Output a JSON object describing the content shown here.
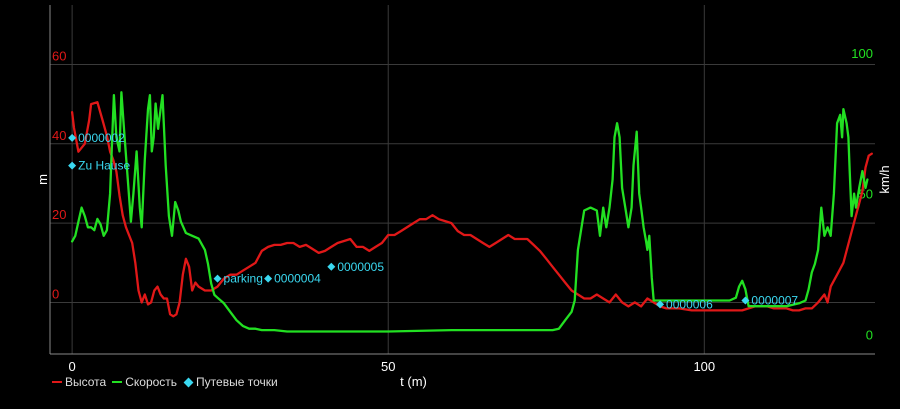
{
  "colors": {
    "altitude": "#e01818",
    "speed": "#22e022",
    "waypoint": "#3ad8f0",
    "grid": "#3a3a3a",
    "axis": "#888888",
    "text": "#ffffff",
    "background": "#000000"
  },
  "legend": {
    "altitude_label": "Высота",
    "speed_label": "Скорость",
    "waypoints_label": "Путевые точки"
  },
  "chart_data": {
    "type": "line",
    "xlabel": "t (m)",
    "ylabel_left": "m",
    "ylabel_right": "km/h",
    "xlim": [
      -3.5,
      127
    ],
    "ylim_left": [
      -13,
      75
    ],
    "ylim_right": [
      -7,
      117
    ],
    "x_ticks": [
      0,
      50,
      100
    ],
    "y_ticks_left": [
      0,
      20,
      40,
      60
    ],
    "y_ticks_right": [
      0,
      50,
      100
    ],
    "grid": true,
    "legend_position": "bottom-left",
    "series": [
      {
        "name": "Высота",
        "axis": "left",
        "points": [
          [
            0,
            48
          ],
          [
            0.3,
            44
          ],
          [
            1,
            38
          ],
          [
            2,
            40
          ],
          [
            2.7,
            46
          ],
          [
            3,
            50
          ],
          [
            4,
            50.5
          ],
          [
            4.8,
            46
          ],
          [
            5.5,
            42
          ],
          [
            6,
            38
          ],
          [
            6.5,
            36
          ],
          [
            7,
            33
          ],
          [
            7.5,
            27
          ],
          [
            8,
            22
          ],
          [
            8.5,
            19
          ],
          [
            9,
            17
          ],
          [
            9.5,
            15
          ],
          [
            10,
            10
          ],
          [
            10.5,
            3
          ],
          [
            11,
            0
          ],
          [
            11.5,
            2
          ],
          [
            12,
            -0.5
          ],
          [
            12.5,
            0
          ],
          [
            13,
            3
          ],
          [
            13.5,
            4
          ],
          [
            14,
            2
          ],
          [
            14.5,
            1
          ],
          [
            15,
            1
          ],
          [
            15.5,
            -3
          ],
          [
            16,
            -3.5
          ],
          [
            16.5,
            -3
          ],
          [
            17,
            0
          ],
          [
            17.5,
            7
          ],
          [
            18,
            11
          ],
          [
            18.5,
            9
          ],
          [
            19,
            3
          ],
          [
            19.5,
            5
          ],
          [
            20,
            4
          ],
          [
            21,
            3
          ],
          [
            22,
            3
          ],
          [
            23,
            4
          ],
          [
            24,
            6
          ],
          [
            25,
            7
          ],
          [
            26,
            7
          ],
          [
            27,
            8
          ],
          [
            28,
            9
          ],
          [
            29,
            10
          ],
          [
            30,
            13
          ],
          [
            31,
            14
          ],
          [
            32,
            14.5
          ],
          [
            33,
            14.5
          ],
          [
            34,
            15
          ],
          [
            35,
            15
          ],
          [
            36,
            14
          ],
          [
            37,
            14.5
          ],
          [
            38,
            13.5
          ],
          [
            39,
            12.5
          ],
          [
            40,
            13
          ],
          [
            41,
            14
          ],
          [
            42,
            15
          ],
          [
            43,
            15.5
          ],
          [
            44,
            16
          ],
          [
            45,
            14
          ],
          [
            46,
            14
          ],
          [
            47,
            13
          ],
          [
            48,
            14
          ],
          [
            49,
            15
          ],
          [
            50,
            17
          ],
          [
            51,
            17
          ],
          [
            52,
            18
          ],
          [
            53,
            19
          ],
          [
            54,
            20
          ],
          [
            55,
            21
          ],
          [
            56,
            21
          ],
          [
            57,
            22
          ],
          [
            58,
            21
          ],
          [
            59,
            20.5
          ],
          [
            60,
            20
          ],
          [
            61,
            18
          ],
          [
            62,
            17
          ],
          [
            63,
            17
          ],
          [
            64,
            16
          ],
          [
            65,
            15
          ],
          [
            66,
            14
          ],
          [
            67,
            15
          ],
          [
            68,
            16
          ],
          [
            69,
            17
          ],
          [
            70,
            16
          ],
          [
            71,
            16
          ],
          [
            72,
            16
          ],
          [
            73,
            14.5
          ],
          [
            74,
            13
          ],
          [
            75,
            11
          ],
          [
            76,
            9
          ],
          [
            77,
            7
          ],
          [
            78,
            5
          ],
          [
            79,
            3
          ],
          [
            80,
            2
          ],
          [
            81,
            1
          ],
          [
            82,
            1
          ],
          [
            83,
            2
          ],
          [
            84,
            1
          ],
          [
            85,
            0
          ],
          [
            86,
            2
          ],
          [
            87,
            0
          ],
          [
            88,
            -1
          ],
          [
            89,
            0
          ],
          [
            90,
            -1
          ],
          [
            91,
            1
          ],
          [
            92,
            0
          ],
          [
            93,
            -1
          ],
          [
            94,
            -1.5
          ],
          [
            96,
            -1.5
          ],
          [
            98,
            -2
          ],
          [
            100,
            -2
          ],
          [
            102,
            -2
          ],
          [
            104,
            -2
          ],
          [
            106,
            -2
          ],
          [
            107,
            -1.5
          ],
          [
            108,
            -1
          ],
          [
            109,
            -1
          ],
          [
            110,
            -1
          ],
          [
            111,
            -1.5
          ],
          [
            112,
            -1.5
          ],
          [
            113,
            -1.5
          ],
          [
            114,
            -2
          ],
          [
            115,
            -2
          ],
          [
            116,
            -1.5
          ],
          [
            117,
            -1.5
          ],
          [
            118,
            0
          ],
          [
            119,
            2
          ],
          [
            119.5,
            0
          ],
          [
            120,
            4
          ],
          [
            121,
            7
          ],
          [
            122,
            10
          ],
          [
            123,
            16
          ],
          [
            124,
            22
          ],
          [
            125,
            28
          ],
          [
            125.5,
            34
          ],
          [
            126,
            37
          ],
          [
            126.5,
            37.5
          ]
        ]
      },
      {
        "name": "Скорость",
        "axis": "right",
        "points": [
          [
            0,
            33
          ],
          [
            0.5,
            35
          ],
          [
            1,
            40
          ],
          [
            1.5,
            45
          ],
          [
            2,
            42
          ],
          [
            2.5,
            38
          ],
          [
            3,
            38
          ],
          [
            3.5,
            37
          ],
          [
            4,
            41
          ],
          [
            4.5,
            39
          ],
          [
            5,
            35
          ],
          [
            5.5,
            37
          ],
          [
            6,
            50
          ],
          [
            6.3,
            68
          ],
          [
            6.6,
            85
          ],
          [
            7,
            70
          ],
          [
            7.5,
            65
          ],
          [
            7.8,
            86
          ],
          [
            8.3,
            70
          ],
          [
            8.8,
            55
          ],
          [
            9.3,
            40
          ],
          [
            9.7,
            50
          ],
          [
            10.2,
            65
          ],
          [
            10.7,
            45
          ],
          [
            11,
            38
          ],
          [
            11.5,
            62
          ],
          [
            12,
            80
          ],
          [
            12.3,
            85
          ],
          [
            12.6,
            65
          ],
          [
            12.9,
            70
          ],
          [
            13.2,
            82
          ],
          [
            13.6,
            73
          ],
          [
            14,
            80
          ],
          [
            14.3,
            85
          ],
          [
            14.8,
            60
          ],
          [
            15.3,
            42
          ],
          [
            15.8,
            35
          ],
          [
            16.3,
            47
          ],
          [
            16.8,
            44
          ],
          [
            17.2,
            40
          ],
          [
            17.6,
            38
          ],
          [
            18,
            36
          ],
          [
            19,
            35
          ],
          [
            20,
            34
          ],
          [
            21,
            30
          ],
          [
            21.5,
            25
          ],
          [
            22,
            18
          ],
          [
            22.5,
            14
          ],
          [
            23,
            13
          ],
          [
            24,
            11
          ],
          [
            25,
            8
          ],
          [
            26,
            5
          ],
          [
            27,
            3
          ],
          [
            28,
            2
          ],
          [
            29,
            2
          ],
          [
            30,
            1.5
          ],
          [
            32,
            1.5
          ],
          [
            34,
            1
          ],
          [
            36,
            1
          ],
          [
            40,
            1
          ],
          [
            50,
            1
          ],
          [
            60,
            1.5
          ],
          [
            70,
            1.5
          ],
          [
            76,
            1.5
          ],
          [
            77,
            2
          ],
          [
            78,
            5
          ],
          [
            79,
            8
          ],
          [
            79.5,
            12
          ],
          [
            80,
            30
          ],
          [
            81,
            44
          ],
          [
            82,
            45
          ],
          [
            83,
            44
          ],
          [
            83.5,
            35
          ],
          [
            84,
            45
          ],
          [
            84.5,
            38
          ],
          [
            85,
            45
          ],
          [
            85.5,
            55
          ],
          [
            85.8,
            70
          ],
          [
            86.2,
            75
          ],
          [
            86.6,
            70
          ],
          [
            87,
            52
          ],
          [
            87.5,
            45
          ],
          [
            88,
            38
          ],
          [
            88.5,
            45
          ],
          [
            88.8,
            60
          ],
          [
            89.3,
            72
          ],
          [
            89.7,
            50
          ],
          [
            90,
            45
          ],
          [
            90.4,
            38
          ],
          [
            90.8,
            33
          ],
          [
            91,
            30
          ],
          [
            91.3,
            35
          ],
          [
            91.7,
            20
          ],
          [
            92,
            12
          ],
          [
            94,
            12
          ],
          [
            98,
            12
          ],
          [
            104,
            12
          ],
          [
            105,
            13
          ],
          [
            105.5,
            17
          ],
          [
            106,
            19
          ],
          [
            106.5,
            16
          ],
          [
            107,
            10
          ],
          [
            110,
            10
          ],
          [
            113,
            10
          ],
          [
            115,
            11
          ],
          [
            116,
            12
          ],
          [
            116.5,
            16
          ],
          [
            117,
            22
          ],
          [
            117.5,
            25
          ],
          [
            118,
            30
          ],
          [
            118.5,
            45
          ],
          [
            119,
            35
          ],
          [
            119.5,
            38
          ],
          [
            120,
            35
          ],
          [
            120.5,
            50
          ],
          [
            121,
            75
          ],
          [
            121.5,
            78
          ],
          [
            121.8,
            70
          ],
          [
            122,
            80
          ],
          [
            122.5,
            75
          ],
          [
            122.8,
            70
          ],
          [
            123,
            58
          ],
          [
            123.3,
            42
          ],
          [
            123.7,
            50
          ],
          [
            124,
            45
          ],
          [
            124.5,
            52
          ],
          [
            125,
            58
          ],
          [
            125.5,
            52
          ],
          [
            125.8,
            55
          ]
        ]
      }
    ],
    "waypoints": [
      {
        "label": "0000002",
        "x": 0,
        "y": 41.5
      },
      {
        "label": "Zu Hause",
        "x": 0,
        "y": 34.5
      },
      {
        "label": "parking",
        "x": 23,
        "y": 6
      },
      {
        "label": "0000004",
        "x": 31,
        "y": 6
      },
      {
        "label": "0000005",
        "x": 41,
        "y": 9
      },
      {
        "label": "0000006",
        "x": 93,
        "y": -0.5
      },
      {
        "label": "0000007",
        "x": 106.5,
        "y": 0.5
      }
    ]
  }
}
